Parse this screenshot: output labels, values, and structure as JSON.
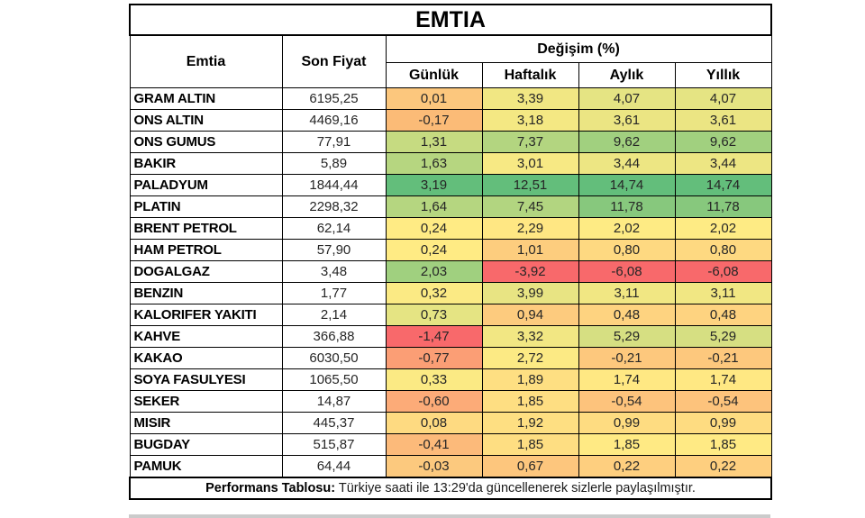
{
  "title": "EMTIA",
  "header": {
    "group": "Değişim (%)"
  },
  "footer": {
    "label": "Performans Tablosu:",
    "text": "Türkiye saati ile 13:29'da güncellenerek sizlerle paylaşılmıştır."
  },
  "colors": {
    "border": "#000000",
    "scale_min_red": "#F8696B",
    "scale_mid_yellow": "#FFEB84",
    "scale_max_green": "#63BE7B",
    "bottom_strip": "#CBCBCB"
  },
  "chart_data": {
    "type": "table",
    "title": "EMTIA",
    "columns": [
      "Emtia",
      "Son Fiyat",
      "Günlük",
      "Haftalık",
      "Aylık",
      "Yıllık"
    ],
    "group_header": "Değişim (%)",
    "rows": [
      {
        "emtia": "GRAM ALTIN",
        "son_fiyat": "6195,25",
        "changes": [
          {
            "value": "0,01",
            "color": "#FCC77D"
          },
          {
            "value": "3,39",
            "color": "#F1E783"
          },
          {
            "value": "4,07",
            "color": "#E5E483"
          },
          {
            "value": "4,07",
            "color": "#E5E483"
          }
        ]
      },
      {
        "emtia": "ONS ALTIN",
        "son_fiyat": "4469,16",
        "changes": [
          {
            "value": "-0,17",
            "color": "#FBBB77"
          },
          {
            "value": "3,18",
            "color": "#F4E883"
          },
          {
            "value": "3,61",
            "color": "#EBE583"
          },
          {
            "value": "3,61",
            "color": "#EBE583"
          }
        ]
      },
      {
        "emtia": "ONS GUMUS",
        "son_fiyat": "77,91",
        "changes": [
          {
            "value": "1,31",
            "color": "#C6DB81"
          },
          {
            "value": "7,37",
            "color": "#B3D580"
          },
          {
            "value": "9,62",
            "color": "#A1D07F"
          },
          {
            "value": "9,62",
            "color": "#A1D07F"
          }
        ]
      },
      {
        "emtia": "BAKIR",
        "son_fiyat": "5,89",
        "changes": [
          {
            "value": "1,63",
            "color": "#B6D680"
          },
          {
            "value": "3,01",
            "color": "#F7E984"
          },
          {
            "value": "3,44",
            "color": "#EDE683"
          },
          {
            "value": "3,44",
            "color": "#EDE683"
          }
        ]
      },
      {
        "emtia": "PALADYUM",
        "son_fiyat": "1844,44",
        "changes": [
          {
            "value": "3,19",
            "color": "#63BE7B"
          },
          {
            "value": "12,51",
            "color": "#63BE7B"
          },
          {
            "value": "14,74",
            "color": "#63BE7B"
          },
          {
            "value": "14,74",
            "color": "#63BE7B"
          }
        ]
      },
      {
        "emtia": "PLATIN",
        "son_fiyat": "2298,32",
        "changes": [
          {
            "value": "1,64",
            "color": "#B5D680"
          },
          {
            "value": "7,45",
            "color": "#B2D580"
          },
          {
            "value": "11,78",
            "color": "#87C87D"
          },
          {
            "value": "11,78",
            "color": "#87C87D"
          }
        ]
      },
      {
        "emtia": "BRENT PETROL",
        "son_fiyat": "62,14",
        "changes": [
          {
            "value": "0,24",
            "color": "#FFEB84"
          },
          {
            "value": "2,29",
            "color": "#FFE783"
          },
          {
            "value": "2,02",
            "color": "#FEEB84"
          },
          {
            "value": "2,02",
            "color": "#FEEB84"
          }
        ]
      },
      {
        "emtia": "HAM PETROL",
        "son_fiyat": "57,90",
        "changes": [
          {
            "value": "0,24",
            "color": "#FFEB84"
          },
          {
            "value": "1,01",
            "color": "#FDCD7E"
          },
          {
            "value": "0,80",
            "color": "#FED981"
          },
          {
            "value": "0,80",
            "color": "#FED981"
          }
        ]
      },
      {
        "emtia": "DOGALGAZ",
        "son_fiyat": "3,48",
        "changes": [
          {
            "value": "2,03",
            "color": "#A0D07F"
          },
          {
            "value": "-3,92",
            "color": "#F8696B"
          },
          {
            "value": "-6,08",
            "color": "#F8696B"
          },
          {
            "value": "-6,08",
            "color": "#F8696B"
          }
        ]
      },
      {
        "emtia": "BENZIN",
        "son_fiyat": "1,77",
        "changes": [
          {
            "value": "0,32",
            "color": "#FBEA84"
          },
          {
            "value": "3,99",
            "color": "#E8E483"
          },
          {
            "value": "3,11",
            "color": "#F1E783"
          },
          {
            "value": "3,11",
            "color": "#F1E783"
          }
        ]
      },
      {
        "emtia": "KALORIFER YAKITI",
        "son_fiyat": "2,14",
        "changes": [
          {
            "value": "0,73",
            "color": "#E5E483"
          },
          {
            "value": "0,94",
            "color": "#FDCB7E"
          },
          {
            "value": "0,48",
            "color": "#FED380"
          },
          {
            "value": "0,48",
            "color": "#FED380"
          }
        ]
      },
      {
        "emtia": "KAHVE",
        "son_fiyat": "366,88",
        "changes": [
          {
            "value": "-1,47",
            "color": "#F8696B"
          },
          {
            "value": "3,32",
            "color": "#F2E783"
          },
          {
            "value": "5,29",
            "color": "#D6DF82"
          },
          {
            "value": "5,29",
            "color": "#D6DF82"
          }
        ]
      },
      {
        "emtia": "KAKAO",
        "son_fiyat": "6030,50",
        "changes": [
          {
            "value": "-0,77",
            "color": "#FB9E75"
          },
          {
            "value": "2,72",
            "color": "#FCEA84"
          },
          {
            "value": "-0,21",
            "color": "#FDC87D"
          },
          {
            "value": "-0,21",
            "color": "#FDC87D"
          }
        ]
      },
      {
        "emtia": "SOYA FASULYESI",
        "son_fiyat": "1065,50",
        "changes": [
          {
            "value": "0,33",
            "color": "#FBEA84"
          },
          {
            "value": "1,89",
            "color": "#FEDF82"
          },
          {
            "value": "1,74",
            "color": "#FFE883"
          },
          {
            "value": "1,74",
            "color": "#FFE883"
          }
        ]
      },
      {
        "emtia": "SEKER",
        "son_fiyat": "14,87",
        "changes": [
          {
            "value": "-0,60",
            "color": "#FCAB78"
          },
          {
            "value": "1,85",
            "color": "#FEDE82"
          },
          {
            "value": "-0,54",
            "color": "#FDC37C"
          },
          {
            "value": "-0,54",
            "color": "#FDC37C"
          }
        ]
      },
      {
        "emtia": "MISIR",
        "son_fiyat": "445,37",
        "changes": [
          {
            "value": "0,08",
            "color": "#FEDA81"
          },
          {
            "value": "1,92",
            "color": "#FEDF82"
          },
          {
            "value": "0,99",
            "color": "#FEDC81"
          },
          {
            "value": "0,99",
            "color": "#FEDC81"
          }
        ]
      },
      {
        "emtia": "BUGDAY",
        "son_fiyat": "515,87",
        "changes": [
          {
            "value": "-0,41",
            "color": "#FCBA7A"
          },
          {
            "value": "1,85",
            "color": "#FEDE82"
          },
          {
            "value": "1,85",
            "color": "#FFEA84"
          },
          {
            "value": "1,85",
            "color": "#FFEA84"
          }
        ]
      },
      {
        "emtia": "PAMUK",
        "son_fiyat": "64,44",
        "changes": [
          {
            "value": "-0,03",
            "color": "#FCC97E"
          },
          {
            "value": "0,67",
            "color": "#FDC67D"
          },
          {
            "value": "0,22",
            "color": "#FECF7F"
          },
          {
            "value": "0,22",
            "color": "#FECF7F"
          }
        ]
      }
    ],
    "footnote": "Performans Tablosu: Türkiye saati ile 13:29'da güncellenerek sizlerle paylaşılmıştır."
  }
}
